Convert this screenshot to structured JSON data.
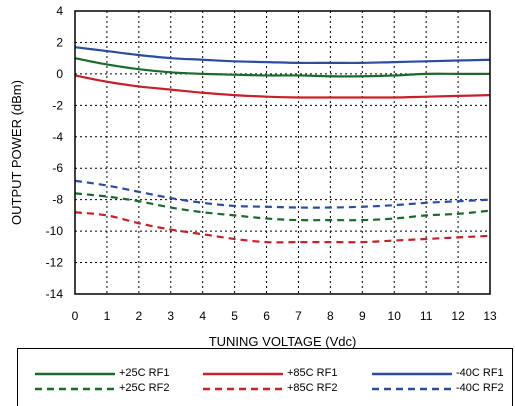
{
  "chart_data": {
    "type": "line",
    "title": "",
    "xlabel": "TUNING VOLTAGE (Vdc)",
    "ylabel": "OUTPUT POWER (dBm)",
    "xlim": [
      0,
      13
    ],
    "ylim": [
      -14,
      4
    ],
    "x_ticks": [
      "0",
      "1",
      "2",
      "3",
      "4",
      "5",
      "6",
      "7",
      "8",
      "9",
      "10",
      "11",
      "12",
      "13"
    ],
    "y_ticks": [
      "4",
      "2",
      "0",
      "-2",
      "-4",
      "-6",
      "-8",
      "-10",
      "-12",
      "-14"
    ],
    "grid": true,
    "legend_position": "bottom",
    "x": [
      0,
      1,
      2,
      3,
      4,
      5,
      6,
      7,
      8,
      9,
      10,
      11,
      12,
      13
    ],
    "series": [
      {
        "name": "+25C RF1",
        "color": "#1a6a2e",
        "dash": "solid",
        "values": [
          1.0,
          0.6,
          0.3,
          0.1,
          0.0,
          -0.05,
          -0.1,
          -0.1,
          -0.15,
          -0.15,
          -0.1,
          0.0,
          0.0,
          0.0
        ]
      },
      {
        "name": "+25C RF2",
        "color": "#1a6a2e",
        "dash": "dashed",
        "values": [
          -7.6,
          -7.8,
          -8.1,
          -8.5,
          -8.8,
          -9.0,
          -9.2,
          -9.3,
          -9.3,
          -9.3,
          -9.2,
          -9.0,
          -8.9,
          -8.7
        ]
      },
      {
        "name": "+85C RF1",
        "color": "#c8202a",
        "dash": "solid",
        "values": [
          -0.1,
          -0.5,
          -0.8,
          -1.0,
          -1.2,
          -1.35,
          -1.45,
          -1.5,
          -1.5,
          -1.5,
          -1.5,
          -1.45,
          -1.4,
          -1.35
        ]
      },
      {
        "name": "+85C RF2",
        "color": "#c8202a",
        "dash": "dashed",
        "values": [
          -8.8,
          -9.0,
          -9.5,
          -9.9,
          -10.2,
          -10.5,
          -10.7,
          -10.7,
          -10.7,
          -10.7,
          -10.6,
          -10.5,
          -10.4,
          -10.3
        ]
      },
      {
        "name": "-40C RF1",
        "color": "#2b4da0",
        "dash": "solid",
        "values": [
          1.7,
          1.45,
          1.2,
          1.0,
          0.9,
          0.8,
          0.75,
          0.7,
          0.7,
          0.7,
          0.75,
          0.8,
          0.85,
          0.9
        ]
      },
      {
        "name": "-40C RF2",
        "color": "#2b4da0",
        "dash": "dashed",
        "values": [
          -6.8,
          -7.1,
          -7.5,
          -7.9,
          -8.2,
          -8.4,
          -8.45,
          -8.5,
          -8.5,
          -8.45,
          -8.35,
          -8.2,
          -8.1,
          -8.0
        ]
      }
    ]
  }
}
